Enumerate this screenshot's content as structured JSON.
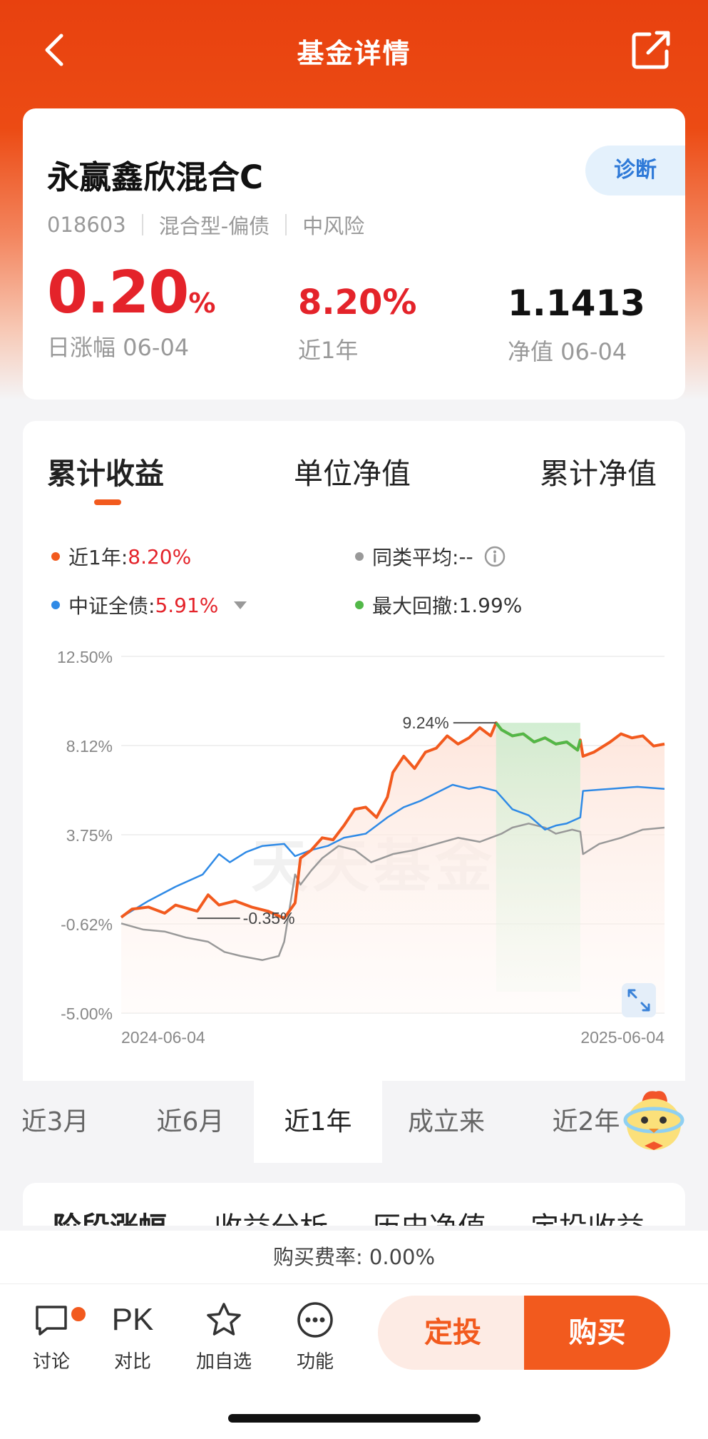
{
  "header": {
    "title": "基金详情"
  },
  "fund": {
    "name": "永赢鑫欣混合C",
    "diagnose_label": "诊断",
    "code": "018603",
    "type": "混合型-偏债",
    "risk": "中风险",
    "daily_change": "0.20",
    "daily_change_unit": "%",
    "daily_change_label": "日涨幅 06-04",
    "year_return": "8.20%",
    "year_return_label": "近1年",
    "nav": "1.1413",
    "nav_label": "净值 06-04"
  },
  "chart_tabs": [
    "累计收益",
    "单位净值",
    "累计净值"
  ],
  "legend": {
    "fund": {
      "label": "近1年:",
      "value": "8.20%",
      "color": "#f25a1e"
    },
    "peer": {
      "label": "同类平均:",
      "value": "--",
      "color": "#999999"
    },
    "index": {
      "label": "中证全债:",
      "value": "5.91%",
      "color": "#2f8ae6"
    },
    "drawdown": {
      "label": "最大回撤:",
      "value": "1.99%",
      "color": "#52b848"
    }
  },
  "watermark": "天天基金",
  "chart_data": {
    "type": "line",
    "x_start": "2024-06-04",
    "x_end": "2025-06-04",
    "x_ticks": [
      "2024-06-04",
      "2025-06-04"
    ],
    "y_ticks": [
      "12.50%",
      "8.12%",
      "3.75%",
      "-0.62%",
      "-5.00%"
    ],
    "ylim": [
      -5.0,
      12.5
    ],
    "max_label": "9.24%",
    "min_label": "-0.35%",
    "drawdown_range_pct": [
      0.69,
      0.845
    ],
    "series": [
      {
        "name": "近1年",
        "color": "#f25a1e",
        "x": [
          0,
          0.02,
          0.05,
          0.08,
          0.1,
          0.14,
          0.16,
          0.18,
          0.21,
          0.24,
          0.27,
          0.3,
          0.32,
          0.33,
          0.35,
          0.37,
          0.39,
          0.41,
          0.43,
          0.45,
          0.47,
          0.49,
          0.5,
          0.52,
          0.54,
          0.56,
          0.58,
          0.6,
          0.62,
          0.64,
          0.66,
          0.68,
          0.69,
          0.7,
          0.72,
          0.74,
          0.76,
          0.78,
          0.8,
          0.82,
          0.84,
          0.845,
          0.85,
          0.87,
          0.9,
          0.92,
          0.94,
          0.96,
          0.98,
          1.0
        ],
        "y": [
          -0.3,
          0.1,
          0.2,
          -0.1,
          0.3,
          0.0,
          0.8,
          0.3,
          0.5,
          0.2,
          0.0,
          -0.35,
          0.4,
          2.6,
          3.0,
          3.6,
          3.5,
          4.2,
          5.0,
          5.1,
          4.6,
          5.6,
          6.8,
          7.6,
          7.0,
          7.8,
          8.0,
          8.6,
          8.2,
          8.5,
          9.0,
          8.6,
          9.24,
          8.9,
          8.6,
          8.7,
          8.3,
          8.5,
          8.2,
          8.3,
          7.9,
          8.4,
          7.6,
          7.8,
          8.3,
          8.7,
          8.5,
          8.6,
          8.1,
          8.2
        ]
      },
      {
        "name": "中证全债",
        "color": "#2f8ae6",
        "x": [
          0,
          0.05,
          0.1,
          0.15,
          0.18,
          0.2,
          0.23,
          0.26,
          0.3,
          0.32,
          0.35,
          0.38,
          0.41,
          0.45,
          0.49,
          0.52,
          0.55,
          0.58,
          0.61,
          0.64,
          0.66,
          0.69,
          0.72,
          0.75,
          0.78,
          0.8,
          0.82,
          0.845,
          0.85,
          0.9,
          0.95,
          1.0
        ],
        "y": [
          -0.3,
          0.5,
          1.2,
          1.8,
          2.8,
          2.4,
          2.9,
          3.2,
          3.3,
          2.7,
          3.0,
          3.2,
          3.6,
          3.8,
          4.6,
          5.1,
          5.4,
          5.8,
          6.2,
          6.0,
          6.1,
          5.9,
          5.0,
          4.7,
          4.0,
          4.2,
          4.3,
          4.6,
          5.9,
          6.0,
          6.1,
          6.0
        ]
      },
      {
        "name": "同类平均",
        "color": "#999999",
        "x": [
          0,
          0.04,
          0.08,
          0.12,
          0.16,
          0.19,
          0.22,
          0.26,
          0.29,
          0.3,
          0.32,
          0.33,
          0.35,
          0.37,
          0.4,
          0.43,
          0.46,
          0.5,
          0.54,
          0.58,
          0.62,
          0.66,
          0.7,
          0.72,
          0.75,
          0.78,
          0.8,
          0.83,
          0.845,
          0.85,
          0.88,
          0.92,
          0.96,
          1.0
        ],
        "y": [
          -0.6,
          -0.9,
          -1.0,
          -1.3,
          -1.5,
          -2.0,
          -2.2,
          -2.4,
          -2.2,
          -1.5,
          1.8,
          1.3,
          2.0,
          2.6,
          3.2,
          3.0,
          2.4,
          2.8,
          3.0,
          3.3,
          3.6,
          3.4,
          3.8,
          4.1,
          4.3,
          4.1,
          3.8,
          4.0,
          3.9,
          2.8,
          3.3,
          3.6,
          4.0,
          4.1
        ]
      }
    ]
  },
  "periods": [
    "近3月",
    "近6月",
    "近1年",
    "成立来",
    "近2年"
  ],
  "periods_active": "近1年",
  "analysis_tabs": [
    "阶段涨幅",
    "收益分析",
    "历史净值",
    "定投收益"
  ],
  "fee": "购买费率: 0.00%",
  "toolbar": {
    "discuss": "讨论",
    "pk_icon": "PK",
    "compare": "对比",
    "watchlist": "加自选",
    "functions": "功能",
    "sip": "定投",
    "buy": "购买"
  }
}
